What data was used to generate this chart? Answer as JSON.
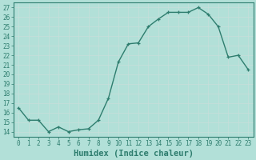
{
  "x": [
    0,
    1,
    2,
    3,
    4,
    5,
    6,
    7,
    8,
    9,
    10,
    11,
    12,
    13,
    14,
    15,
    16,
    17,
    18,
    19,
    20,
    21,
    22,
    23
  ],
  "y": [
    16.5,
    15.2,
    15.2,
    14.0,
    14.5,
    14.0,
    14.2,
    14.3,
    15.2,
    17.5,
    21.3,
    23.2,
    23.3,
    25.0,
    25.8,
    26.5,
    26.5,
    26.5,
    27.0,
    26.3,
    25.0,
    21.8,
    22.0,
    20.5
  ],
  "xlabel": "Humidex (Indice chaleur)",
  "xlim": [
    -0.5,
    23.5
  ],
  "ylim": [
    13.5,
    27.5
  ],
  "yticks": [
    14,
    15,
    16,
    17,
    18,
    19,
    20,
    21,
    22,
    23,
    24,
    25,
    26,
    27
  ],
  "xticks": [
    0,
    1,
    2,
    3,
    4,
    5,
    6,
    7,
    8,
    9,
    10,
    11,
    12,
    13,
    14,
    15,
    16,
    17,
    18,
    19,
    20,
    21,
    22,
    23
  ],
  "line_color": "#2e7d6e",
  "marker": "+",
  "bg_color": "#b2e0d8",
  "grid_color": "#c8deda",
  "tick_label_fontsize": 5.5,
  "xlabel_fontsize": 7.5,
  "linewidth": 1.0,
  "markersize": 3.5
}
